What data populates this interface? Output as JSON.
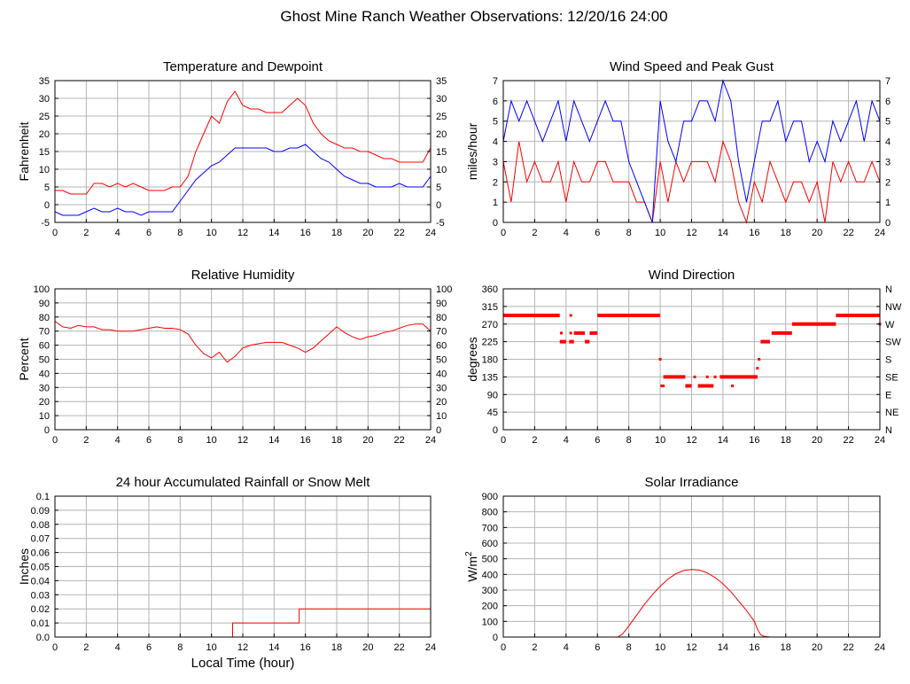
{
  "page": {
    "title": "Ghost Mine Ranch Weather Observations: 12/20/16 24:00"
  },
  "colors": {
    "red": "#ff0000",
    "blue": "#0000ff",
    "grid": "#b4b4b4",
    "axis": "#000000"
  },
  "chart_data": [
    {
      "id": "temp",
      "type": "line",
      "title": "Temperature and Dewpoint",
      "xlabel": "",
      "ylabel": "Fahrenheit",
      "xlim": [
        0,
        24
      ],
      "ylim": [
        -5,
        35
      ],
      "xticks": [
        "0",
        "2",
        "4",
        "6",
        "8",
        "10",
        "12",
        "14",
        "16",
        "18",
        "20",
        "22",
        "24"
      ],
      "yticks": [
        "-5",
        "0",
        "5",
        "10",
        "15",
        "20",
        "25",
        "30",
        "35"
      ],
      "right_yticks": [
        "-5",
        "0",
        "5",
        "10",
        "15",
        "20",
        "25",
        "30",
        "35"
      ],
      "grid": true,
      "series": [
        {
          "color": "#ff0000",
          "x": [
            0,
            0.5,
            1,
            1.5,
            2,
            2.5,
            3,
            3.5,
            4,
            4.5,
            5,
            5.5,
            6,
            6.5,
            7,
            7.5,
            8,
            8.5,
            9,
            9.5,
            10,
            10.5,
            11,
            11.5,
            12,
            12.5,
            13,
            13.5,
            14,
            14.5,
            15,
            15.5,
            16,
            16.5,
            17,
            17.5,
            18,
            18.5,
            19,
            19.5,
            20,
            20.5,
            21,
            21.5,
            22,
            22.5,
            23,
            23.5,
            24
          ],
          "y": [
            4,
            4,
            3,
            3,
            3,
            6,
            6,
            5,
            6,
            5,
            6,
            5,
            4,
            4,
            4,
            5,
            5,
            8,
            15,
            20,
            25,
            23,
            29,
            32,
            28,
            27,
            27,
            26,
            26,
            26,
            28,
            30,
            28,
            23,
            20,
            18,
            17,
            16,
            16,
            15,
            15,
            14,
            13,
            13,
            12,
            12,
            12,
            12,
            16
          ]
        },
        {
          "color": "#0000ff",
          "x": [
            0,
            0.5,
            1,
            1.5,
            2,
            2.5,
            3,
            3.5,
            4,
            4.5,
            5,
            5.5,
            6,
            6.5,
            7,
            7.5,
            8,
            8.5,
            9,
            9.5,
            10,
            10.5,
            11,
            11.5,
            12,
            12.5,
            13,
            13.5,
            14,
            14.5,
            15,
            15.5,
            16,
            16.5,
            17,
            17.5,
            18,
            18.5,
            19,
            19.5,
            20,
            20.5,
            21,
            21.5,
            22,
            22.5,
            23,
            23.5,
            24
          ],
          "y": [
            -2,
            -3,
            -3,
            -3,
            -2,
            -1,
            -2,
            -2,
            -1,
            -2,
            -2,
            -3,
            -2,
            -2,
            -2,
            -2,
            1,
            4,
            7,
            9,
            11,
            12,
            14,
            16,
            16,
            16,
            16,
            16,
            15,
            15,
            16,
            16,
            17,
            15,
            13,
            12,
            10,
            8,
            7,
            6,
            6,
            5,
            5,
            5,
            6,
            5,
            5,
            5,
            8
          ]
        }
      ]
    },
    {
      "id": "wind",
      "type": "line",
      "title": "Wind Speed and Peak Gust",
      "xlabel": "",
      "ylabel": "miles/hour",
      "xlim": [
        0,
        24
      ],
      "ylim": [
        0,
        7
      ],
      "xticks": [
        "0",
        "2",
        "4",
        "6",
        "8",
        "10",
        "12",
        "14",
        "16",
        "18",
        "20",
        "22",
        "24"
      ],
      "yticks": [
        "0",
        "1",
        "2",
        "3",
        "4",
        "5",
        "6",
        "7"
      ],
      "right_yticks": [
        "0",
        "1",
        "2",
        "3",
        "4",
        "5",
        "6",
        "7"
      ],
      "grid": true,
      "series": [
        {
          "color": "#ff0000",
          "x": [
            0,
            0.5,
            1,
            1.5,
            2,
            2.5,
            3,
            3.5,
            4,
            4.5,
            5,
            5.5,
            6,
            6.5,
            7,
            7.5,
            8,
            8.5,
            9,
            9.5,
            10,
            10.5,
            11,
            11.5,
            12,
            12.5,
            13,
            13.5,
            14,
            14.5,
            15,
            15.5,
            16,
            16.5,
            17,
            17.5,
            18,
            18.5,
            19,
            19.5,
            20,
            20.5,
            21,
            21.5,
            22,
            22.5,
            23,
            23.5,
            24
          ],
          "y": [
            3,
            1,
            4,
            2,
            3,
            2,
            2,
            3,
            1,
            3,
            2,
            2,
            3,
            3,
            2,
            2,
            2,
            1,
            1,
            0,
            3,
            1,
            3,
            2,
            3,
            3,
            3,
            2,
            4,
            3,
            1,
            0,
            2,
            1,
            3,
            2,
            1,
            2,
            2,
            1,
            2,
            0,
            3,
            2,
            3,
            2,
            2,
            3,
            2
          ]
        },
        {
          "color": "#0000ff",
          "x": [
            0,
            0.5,
            1,
            1.5,
            2,
            2.5,
            3,
            3.5,
            4,
            4.5,
            5,
            5.5,
            6,
            6.5,
            7,
            7.5,
            8,
            8.5,
            9,
            9.5,
            10,
            10.5,
            11,
            11.5,
            12,
            12.5,
            13,
            13.5,
            14,
            14.5,
            15,
            15.5,
            16,
            16.5,
            17,
            17.5,
            18,
            18.5,
            19,
            19.5,
            20,
            20.5,
            21,
            21.5,
            22,
            22.5,
            23,
            23.5,
            24
          ],
          "y": [
            4,
            6,
            5,
            6,
            5,
            4,
            5,
            6,
            4,
            6,
            5,
            4,
            5,
            6,
            5,
            5,
            3,
            2,
            1,
            0,
            6,
            4,
            3,
            5,
            5,
            6,
            6,
            5,
            7,
            6,
            3,
            1,
            3,
            5,
            5,
            6,
            4,
            5,
            5,
            3,
            4,
            3,
            5,
            4,
            5,
            6,
            4,
            6,
            5
          ]
        }
      ]
    },
    {
      "id": "humidity",
      "type": "line",
      "title": "Relative Humidity",
      "xlabel": "",
      "ylabel": "Percent",
      "xlim": [
        0,
        24
      ],
      "ylim": [
        0,
        100
      ],
      "xticks": [
        "0",
        "2",
        "4",
        "6",
        "8",
        "10",
        "12",
        "14",
        "16",
        "18",
        "20",
        "22",
        "24"
      ],
      "yticks": [
        "0",
        "10",
        "20",
        "30",
        "40",
        "50",
        "60",
        "70",
        "80",
        "90",
        "100"
      ],
      "right_yticks": [
        "0",
        "10",
        "20",
        "30",
        "40",
        "50",
        "60",
        "70",
        "80",
        "90",
        "100"
      ],
      "grid": true,
      "series": [
        {
          "color": "#ff0000",
          "x": [
            0,
            0.5,
            1,
            1.5,
            2,
            2.5,
            3,
            3.5,
            4,
            4.5,
            5,
            5.5,
            6,
            6.5,
            7,
            7.5,
            8,
            8.5,
            9,
            9.5,
            10,
            10.5,
            11,
            11.5,
            12,
            12.5,
            13,
            13.5,
            14,
            14.5,
            15,
            15.5,
            16,
            16.5,
            17,
            17.5,
            18,
            18.5,
            19,
            19.5,
            20,
            20.5,
            21,
            21.5,
            22,
            22.5,
            23,
            23.5,
            24
          ],
          "y": [
            77,
            73,
            72,
            74,
            73,
            73,
            71,
            71,
            70,
            70,
            70,
            71,
            72,
            73,
            72,
            72,
            71,
            68,
            60,
            54,
            51,
            55,
            48,
            52,
            58,
            60,
            61,
            62,
            62,
            62,
            60,
            58,
            55,
            58,
            63,
            68,
            73,
            69,
            66,
            64,
            66,
            67,
            69,
            70,
            72,
            74,
            75,
            75,
            70
          ]
        }
      ]
    },
    {
      "id": "direction",
      "type": "scatter",
      "title": "Wind Direction",
      "xlabel": "",
      "ylabel": "degrees",
      "xlim": [
        0,
        24
      ],
      "ylim": [
        0,
        360
      ],
      "xticks": [
        "0",
        "2",
        "4",
        "6",
        "8",
        "10",
        "12",
        "14",
        "16",
        "18",
        "20",
        "22",
        "24"
      ],
      "yticks": [
        "0",
        "45",
        "90",
        "135",
        "180",
        "225",
        "270",
        "315",
        "360"
      ],
      "right_yticks": [
        "N",
        "NE",
        "E",
        "SE",
        "S",
        "SW",
        "W",
        "NW",
        "N"
      ],
      "grid": true,
      "series": [
        {
          "color": "#ff0000",
          "segments": [
            {
              "x0": 0,
              "x1": 3.6,
              "y": 292
            },
            {
              "x0": 3.6,
              "x1": 4.0,
              "y": 225
            },
            {
              "x0": 4.2,
              "x1": 4.5,
              "y": 225
            },
            {
              "x0": 4.5,
              "x1": 5.2,
              "y": 247
            },
            {
              "x0": 5.2,
              "x1": 5.5,
              "y": 225
            },
            {
              "x0": 5.5,
              "x1": 6.0,
              "y": 247
            },
            {
              "x0": 6.0,
              "x1": 10.0,
              "y": 292
            },
            {
              "x0": 10.2,
              "x1": 11.6,
              "y": 135
            },
            {
              "x0": 11.6,
              "x1": 12.0,
              "y": 112
            },
            {
              "x0": 12.4,
              "x1": 13.4,
              "y": 112
            },
            {
              "x0": 13.8,
              "x1": 16.2,
              "y": 135
            },
            {
              "x0": 16.4,
              "x1": 17.0,
              "y": 225
            },
            {
              "x0": 17.1,
              "x1": 18.4,
              "y": 247
            },
            {
              "x0": 18.4,
              "x1": 21.2,
              "y": 270
            },
            {
              "x0": 21.2,
              "x1": 24.0,
              "y": 292
            }
          ],
          "points": [
            {
              "x": 3.7,
              "y": 247
            },
            {
              "x": 4.3,
              "y": 292
            },
            {
              "x": 4.3,
              "y": 247
            },
            {
              "x": 10.0,
              "y": 180
            },
            {
              "x": 10.1,
              "y": 112
            },
            {
              "x": 10.2,
              "y": 112
            },
            {
              "x": 12.2,
              "y": 135
            },
            {
              "x": 13.0,
              "y": 135
            },
            {
              "x": 13.5,
              "y": 135
            },
            {
              "x": 14.6,
              "y": 112
            },
            {
              "x": 16.2,
              "y": 157
            },
            {
              "x": 16.3,
              "y": 180
            },
            {
              "x": 24.0,
              "y": 270
            }
          ]
        }
      ]
    },
    {
      "id": "rain",
      "type": "line",
      "title": "24 hour Accumulated Rainfall or Snow Melt",
      "xlabel": "Local Time (hour)",
      "ylabel": "Inches",
      "xlim": [
        0,
        24
      ],
      "ylim": [
        0,
        0.1
      ],
      "xticks": [
        "0",
        "2",
        "4",
        "6",
        "8",
        "10",
        "12",
        "14",
        "16",
        "18",
        "20",
        "22",
        "24"
      ],
      "yticks": [
        "0.0",
        "0.01",
        "0.02",
        "0.03",
        "0.04",
        "0.05",
        "0.06",
        "0.07",
        "0.08",
        "0.09",
        "0.1"
      ],
      "right_yticks": [],
      "grid": true,
      "series": [
        {
          "color": "#ff0000",
          "x": [
            0,
            11.35,
            11.35,
            15.6,
            15.6,
            24
          ],
          "y": [
            0,
            0,
            0.01,
            0.01,
            0.02,
            0.02
          ]
        }
      ]
    },
    {
      "id": "solar",
      "type": "line",
      "title": "Solar Irradiance",
      "xlabel": "",
      "ylabel": "W/m",
      "ylabel_sup": "2",
      "xlim": [
        0,
        24
      ],
      "ylim": [
        0,
        900
      ],
      "xticks": [
        "0",
        "2",
        "4",
        "6",
        "8",
        "10",
        "12",
        "14",
        "16",
        "18",
        "20",
        "22",
        "24"
      ],
      "yticks": [
        "0",
        "100",
        "200",
        "300",
        "400",
        "500",
        "600",
        "700",
        "800",
        "900"
      ],
      "right_yticks": [],
      "grid": true,
      "series": [
        {
          "color": "#ff0000",
          "x": [
            0,
            7.3,
            7.6,
            8,
            8.5,
            9,
            9.5,
            10,
            10.5,
            11,
            11.5,
            12,
            12.5,
            13,
            13.5,
            14,
            14.5,
            15,
            15.5,
            16,
            16.2,
            16.4,
            16.6,
            17,
            24
          ],
          "y": [
            0,
            0,
            20,
            70,
            140,
            210,
            270,
            325,
            370,
            405,
            425,
            432,
            428,
            410,
            380,
            340,
            290,
            230,
            170,
            100,
            50,
            15,
            5,
            0,
            0
          ]
        }
      ]
    }
  ]
}
